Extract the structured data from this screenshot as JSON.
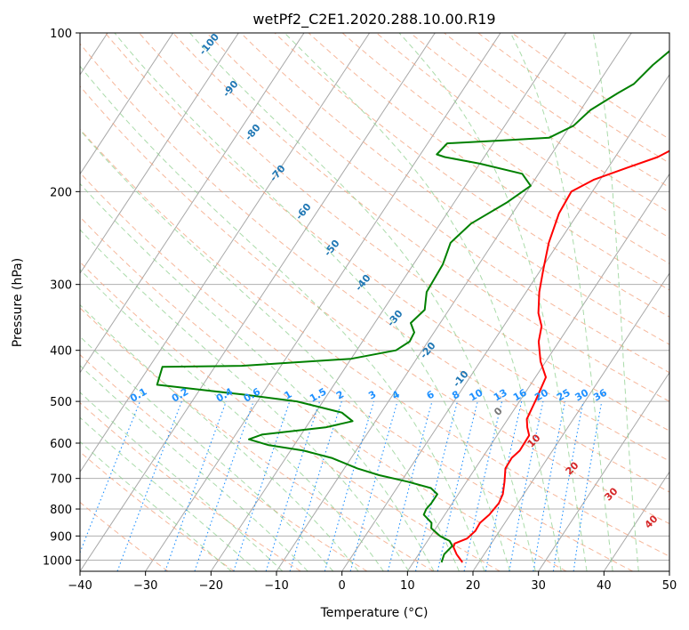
{
  "chart_data": {
    "type": "line",
    "title": "wetPf2_C2E1.2020.288.10.00.R19",
    "xlabel": "Temperature (°C)",
    "ylabel": "Pressure (hPa)",
    "xlim": [
      -40,
      50
    ],
    "ylim": [
      1050,
      100
    ],
    "y_scale": "log",
    "x_ticks": [
      "−40",
      "−30",
      "−20",
      "−10",
      "0",
      "10",
      "20",
      "30",
      "40",
      "50"
    ],
    "y_ticks": [
      "100",
      "200",
      "300",
      "400",
      "500",
      "600",
      "700",
      "800",
      "900",
      "1000"
    ],
    "grid": true,
    "colors": {
      "temperature": "#ff0000",
      "dewpoint": "#008000",
      "isotherm": "#999999",
      "dry_adiabat": "#f4a582",
      "moist_adiabat": "#8ecf8e",
      "mixing_ratio": "#1e90ff"
    },
    "series": [
      {
        "color": "#ff0000",
        "points": [
          [
            17.5,
            1010
          ],
          [
            15.8,
            975
          ],
          [
            14.6,
            945
          ],
          [
            14.4,
            930
          ],
          [
            15.8,
            910
          ],
          [
            16.3,
            880
          ],
          [
            16.2,
            850
          ],
          [
            16.8,
            820
          ],
          [
            17.1,
            780
          ],
          [
            16.8,
            750
          ],
          [
            15.8,
            710
          ],
          [
            14.6,
            670
          ],
          [
            14.5,
            640
          ],
          [
            15.0,
            620
          ],
          [
            14.9,
            580
          ],
          [
            13.8,
            560
          ],
          [
            12.9,
            540
          ],
          [
            12.4,
            500
          ],
          [
            11.6,
            450
          ],
          [
            9.2,
            420
          ],
          [
            6.9,
            385
          ],
          [
            5.8,
            360
          ],
          [
            4.0,
            340
          ],
          [
            2.0,
            310
          ],
          [
            0.3,
            280
          ],
          [
            -1.5,
            250
          ],
          [
            -2.9,
            220
          ],
          [
            -3.2,
            200
          ],
          [
            -1.0,
            190
          ],
          [
            3.0,
            180
          ],
          [
            6.5,
            172
          ],
          [
            9.7,
            160
          ],
          [
            10.8,
            145
          ],
          [
            11.3,
            130
          ],
          [
            13.0,
            120
          ],
          [
            15.7,
            110
          ],
          [
            17.5,
            100
          ]
        ]
      },
      {
        "color": "#008000",
        "points": [
          [
            14.3,
            1010
          ],
          [
            13.9,
            975
          ],
          [
            14.3,
            940
          ],
          [
            13.4,
            920
          ],
          [
            11.4,
            900
          ],
          [
            9.3,
            870
          ],
          [
            8.8,
            850
          ],
          [
            6.8,
            820
          ],
          [
            6.6,
            800
          ],
          [
            6.8,
            780
          ],
          [
            6.8,
            750
          ],
          [
            5.2,
            730
          ],
          [
            1.0,
            710
          ],
          [
            -4.0,
            690
          ],
          [
            -8.0,
            670
          ],
          [
            -13.0,
            640
          ],
          [
            -18.0,
            620
          ],
          [
            -24.0,
            605
          ],
          [
            -27.5,
            590
          ],
          [
            -26.0,
            578
          ],
          [
            -17.0,
            560
          ],
          [
            -13.5,
            545
          ],
          [
            -16.0,
            525
          ],
          [
            -24.0,
            500
          ],
          [
            -33.0,
            485
          ],
          [
            -40.0,
            475
          ],
          [
            -47.0,
            465
          ],
          [
            -48.0,
            430
          ],
          [
            -36.0,
            428
          ],
          [
            -20.0,
            415
          ],
          [
            -14.0,
            400
          ],
          [
            -12.8,
            385
          ],
          [
            -13.0,
            370
          ],
          [
            -14.5,
            355
          ],
          [
            -13.7,
            335
          ],
          [
            -15.2,
            310
          ],
          [
            -15.5,
            275
          ],
          [
            -16.5,
            250
          ],
          [
            -15.3,
            230
          ],
          [
            -12.0,
            210
          ],
          [
            -10.0,
            195
          ],
          [
            -12.5,
            185
          ],
          [
            -20.0,
            177
          ],
          [
            -26.0,
            172
          ],
          [
            -27.5,
            170
          ],
          [
            -27.0,
            162
          ],
          [
            -19.0,
            160
          ],
          [
            -12.0,
            158
          ],
          [
            -9.5,
            150
          ],
          [
            -8.5,
            140
          ],
          [
            -6.0,
            130
          ],
          [
            -4.5,
            125
          ],
          [
            -3.5,
            115
          ],
          [
            -1.8,
            105
          ],
          [
            -0.8,
            100
          ]
        ]
      }
    ],
    "mixing_ratio_values": [
      "0.1",
      "0.2",
      "0.4",
      "0.6",
      "1",
      "1.5",
      "2",
      "3",
      "4",
      "6",
      "8",
      "10",
      "13",
      "16",
      "20",
      "25",
      "30",
      "36"
    ],
    "dry_adiabat_labels": [
      "-100",
      "-90",
      "-80",
      "-70",
      "-60",
      "-50",
      "-40",
      "-30",
      "-20",
      "-10"
    ],
    "moist_adiabat_labels": [
      "0",
      "10",
      "20",
      "30",
      "40"
    ]
  }
}
